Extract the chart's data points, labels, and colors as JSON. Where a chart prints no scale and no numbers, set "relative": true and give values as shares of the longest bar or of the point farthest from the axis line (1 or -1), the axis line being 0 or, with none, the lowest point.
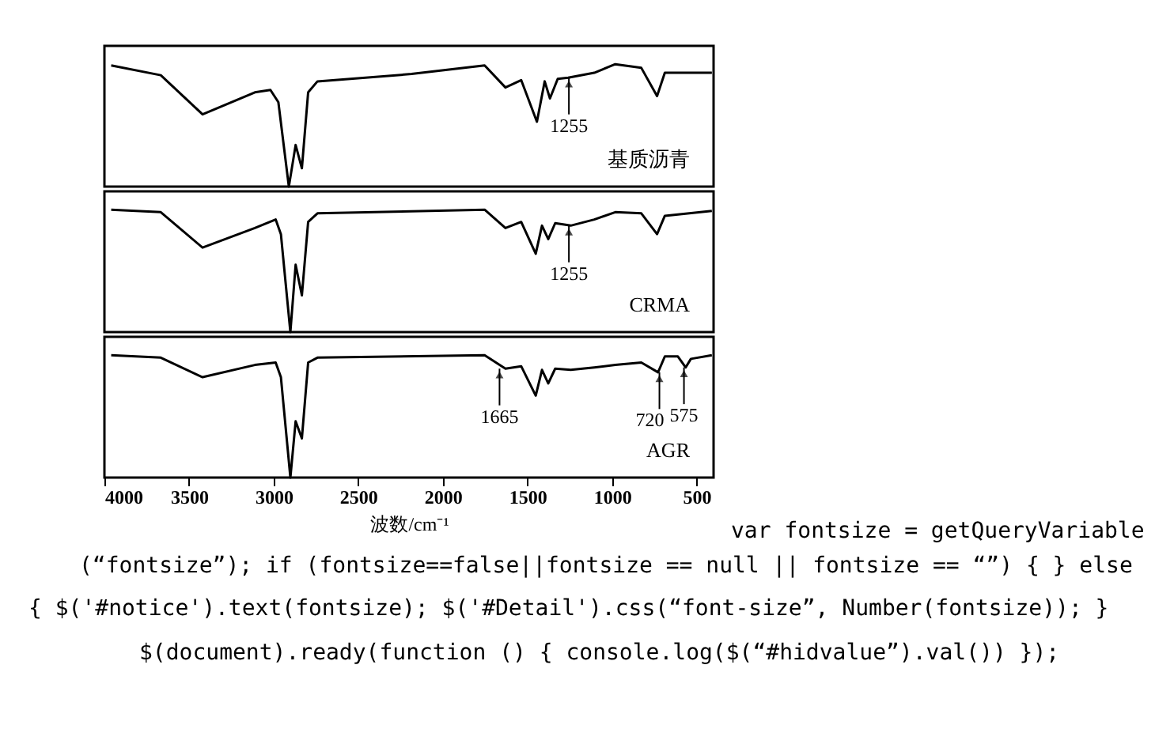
{
  "chart_data": [
    {
      "type": "line",
      "relative": true,
      "xlim": [
        4000,
        400
      ],
      "tick_labels": false,
      "line_style": "solid",
      "series": [
        {
          "name": "基质沥青",
          "color": "#000000",
          "x": [
            3960,
            3667,
            3420,
            3111,
            3019,
            2972,
            2910,
            2870,
            2833,
            2796,
            2741,
            2185,
            1753,
            1630,
            1537,
            1444,
            1398,
            1367,
            1321,
            1259,
            1105,
            981,
            827,
            734,
            688,
            410
          ],
          "values": [
            0.99,
            0.91,
            0.59,
            0.77,
            0.79,
            0.69,
            0,
            0.34,
            0.15,
            0.77,
            0.86,
            0.92,
            0.99,
            0.81,
            0.87,
            0.53,
            0.86,
            0.72,
            0.88,
            0.89,
            0.93,
            1,
            0.97,
            0.74,
            0.93,
            0.93
          ]
        }
      ],
      "annotations": [
        {
          "text": "1255",
          "x": 1255,
          "y": 0.89
        }
      ]
    },
    {
      "type": "line",
      "relative": true,
      "xlim": [
        4000,
        400
      ],
      "tick_labels": false,
      "line_style": "solid",
      "series": [
        {
          "name": "CRMA",
          "color": "#000000",
          "x": [
            3960,
            3667,
            3420,
            3111,
            2988,
            2957,
            2901,
            2870,
            2833,
            2796,
            2741,
            1753,
            1630,
            1537,
            1451,
            1414,
            1377,
            1336,
            1244,
            1105,
            981,
            827,
            734,
            688,
            410
          ],
          "values": [
            1,
            0.98,
            0.69,
            0.85,
            0.92,
            0.8,
            0,
            0.55,
            0.3,
            0.9,
            0.97,
            1,
            0.85,
            0.9,
            0.64,
            0.87,
            0.76,
            0.89,
            0.87,
            0.92,
            0.98,
            0.97,
            0.8,
            0.95,
            0.99
          ]
        }
      ],
      "annotations": [
        {
          "text": "1255",
          "x": 1255,
          "y": 0.87
        }
      ]
    },
    {
      "type": "line",
      "relative": true,
      "xlim": [
        4000,
        400
      ],
      "xticks": [
        4000,
        3500,
        3000,
        2500,
        2000,
        1500,
        1000,
        500
      ],
      "tick_labels": "x",
      "xlabel": "波数/cm⁻¹",
      "grid": false,
      "line_style": "solid",
      "series": [
        {
          "name": "AGR",
          "color": "#000000",
          "x": [
            3960,
            3667,
            3420,
            3111,
            2988,
            2957,
            2901,
            2870,
            2833,
            2796,
            2741,
            1753,
            1630,
            1537,
            1451,
            1414,
            1377,
            1336,
            1244,
            1105,
            981,
            827,
            728,
            688,
            611,
            565,
            534,
            410
          ],
          "values": [
            1,
            0.98,
            0.82,
            0.92,
            0.94,
            0.82,
            0,
            0.46,
            0.32,
            0.94,
            0.98,
            1,
            0.89,
            0.91,
            0.67,
            0.88,
            0.77,
            0.89,
            0.88,
            0.9,
            0.92,
            0.94,
            0.86,
            0.99,
            0.99,
            0.9,
            0.97,
            1
          ]
        }
      ],
      "annotations": [
        {
          "text": "1665",
          "x": 1665,
          "y": 0.89
        },
        {
          "text": "720",
          "x": 720,
          "y": 0.86
        },
        {
          "text": "575",
          "x": 575,
          "y": 0.9
        },
        "var fontsize = getQueryVariable",
        "(“fontsize”); if (fontsize==false||fontsize == null || fontsize == “”) { } else",
        "{ $('#notice').text(fontsize); $('#Detail').css(“font-size”, Number(fontsize)); }",
        "$(document).ready(function () { console.log($(“#hidvalue”).val()) });"
      ]
    }
  ]
}
